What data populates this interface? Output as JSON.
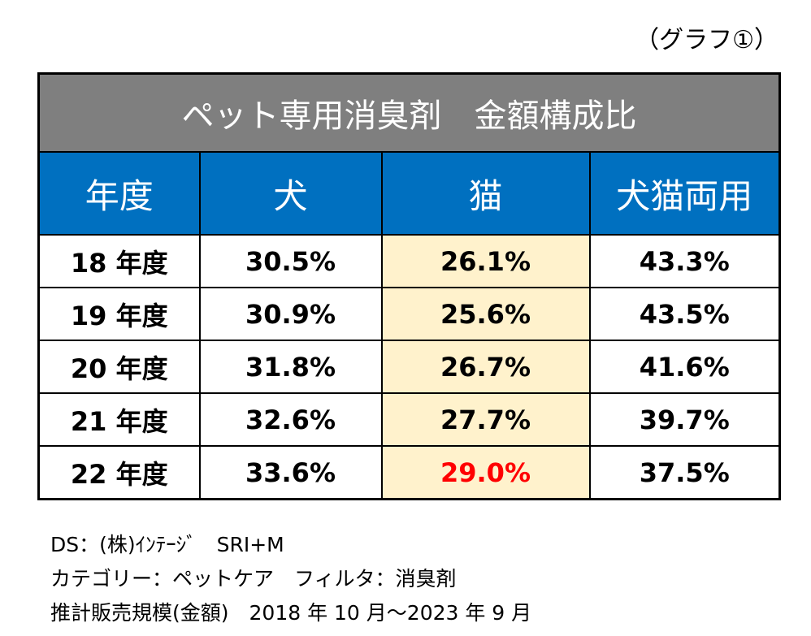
{
  "graph_label": "（グラフ①）",
  "table": {
    "title": "ペット専用消臭剤　金額構成比",
    "headers": [
      "年度",
      "犬",
      "猫",
      "犬猫両用"
    ],
    "rows": [
      {
        "year": "18 年度",
        "dog": "30.5%",
        "cat": "26.1%",
        "both": "43.3%"
      },
      {
        "year": "19 年度",
        "dog": "30.9%",
        "cat": "25.6%",
        "both": "43.5%"
      },
      {
        "year": "20 年度",
        "dog": "31.8%",
        "cat": "26.7%",
        "both": "41.6%"
      },
      {
        "year": "21 年度",
        "dog": "32.6%",
        "cat": "27.7%",
        "both": "39.7%"
      },
      {
        "year": "22 年度",
        "dog": "33.6%",
        "cat": "29.0%",
        "both": "37.5%"
      }
    ]
  },
  "footer": {
    "line1": "DS：(株)ｲﾝﾃｰｼﾞ　SRI+M",
    "line2": "カテゴリー：ペットケア　フィルタ：消臭剤",
    "line3": "推計販売規模(金額)　2018 年 10 月～2023 年 9 月"
  },
  "colors": {
    "title_bg": "#7f7f7f",
    "header_bg": "#0070c0",
    "cat_column_bg": "#fff2cc",
    "highlight_text": "#ff0000"
  }
}
